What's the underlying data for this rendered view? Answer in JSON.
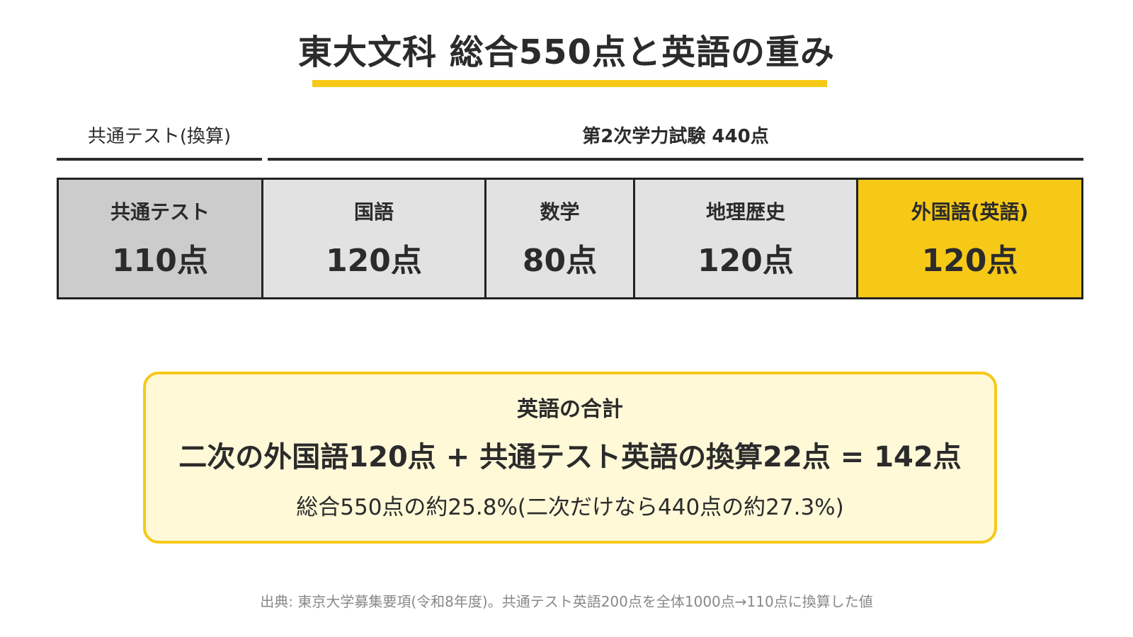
{
  "title": "東大文科 総合550点と英語の重み",
  "groups": {
    "common": "共通テスト(換算)",
    "second": "第2次学力試験 440点"
  },
  "segments": [
    {
      "name": "共通テスト",
      "points": "110点",
      "value": 110,
      "color": "#cccccc"
    },
    {
      "name": "国語",
      "points": "120点",
      "value": 120,
      "color": "#e2e2e2"
    },
    {
      "name": "数学",
      "points": "80点",
      "value": 80,
      "color": "#e2e2e2"
    },
    {
      "name": "地理歴史",
      "points": "120点",
      "value": 120,
      "color": "#e2e2e2"
    },
    {
      "name": "外国語(英語)",
      "points": "120点",
      "value": 120,
      "color": "#f6c917"
    }
  ],
  "summary": {
    "heading": "英語の合計",
    "formula": "二次の外国語120点 + 共通テスト英語の換算22点 = 142点",
    "note": "総合550点の約25.8%(二次だけなら440点の約27.3%)"
  },
  "source": "出典: 東京大学募集要項(令和8年度)。共通テスト英語200点を全体1000点→110点に換算した値",
  "colors": {
    "accent": "#f6c917",
    "summary_bg": "#fff9d8",
    "common_fill": "#cccccc",
    "subject_fill": "#e2e2e2"
  }
}
